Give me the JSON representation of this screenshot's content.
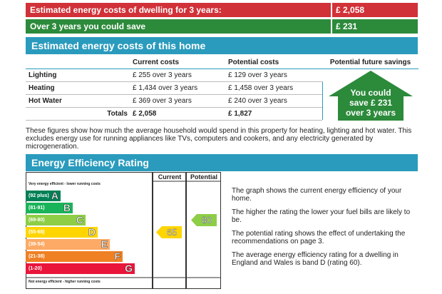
{
  "summary": {
    "estimated_label": "Estimated energy costs of dwelling for 3 years:",
    "estimated_value": "£ 2,058",
    "save_label": "Over 3 years you could save",
    "save_value": "£ 231"
  },
  "costs_section": {
    "title": "Estimated energy costs of this home",
    "headers": [
      "",
      "Current costs",
      "Potential costs",
      "Potential future savings"
    ],
    "rows": [
      {
        "name": "Lighting",
        "current": "£ 255 over 3 years",
        "potential": "£ 129 over 3 years"
      },
      {
        "name": "Heating",
        "current": "£ 1,434 over 3 years",
        "potential": "£ 1,458 over 3 years"
      },
      {
        "name": "Hot Water",
        "current": "£ 369 over 3 years",
        "potential": "£ 240 over 3 years"
      }
    ],
    "totals": {
      "label": "Totals",
      "current": "£ 2,058",
      "potential": "£ 1,827"
    },
    "savings_arrow": {
      "line1": "You could",
      "line2": "save £ 231",
      "line3": "over 3 years",
      "color": "#2c8a3b"
    }
  },
  "note": "These figures show how much the average household would spend in this property for heating, lighting and hot water. This excludes energy use for running appliances like TVs, computers and cookers, and any electricity generated by microgeneration.",
  "eer_section": {
    "title": "Energy Efficiency Rating",
    "col_current": "Current",
    "col_potential": "Potential",
    "top_caption": "Very energy efficient - lower running costs",
    "bottom_caption": "Not energy efficient - higher running costs",
    "bands": [
      {
        "range": "(92 plus)",
        "letter": "A",
        "color": "#008054",
        "fraction": 0.28
      },
      {
        "range": "(81-91)",
        "letter": "B",
        "color": "#19b459",
        "fraction": 0.38
      },
      {
        "range": "(69-80)",
        "letter": "C",
        "color": "#8dce46",
        "fraction": 0.48
      },
      {
        "range": "(55-68)",
        "letter": "D",
        "color": "#ffd500",
        "fraction": 0.58
      },
      {
        "range": "(39-54)",
        "letter": "E",
        "color": "#fcaa65",
        "fraction": 0.68
      },
      {
        "range": "(21-38)",
        "letter": "F",
        "color": "#ef8023",
        "fraction": 0.78
      },
      {
        "range": "(1-20)",
        "letter": "G",
        "color": "#e9153b",
        "fraction": 0.88
      }
    ],
    "current": {
      "value": "65",
      "band": "D",
      "color": "#ffd500"
    },
    "potential": {
      "value": "80",
      "band": "C",
      "color": "#8dce46"
    },
    "paragraphs": [
      "The graph shows the current energy efficiency of your home.",
      "The higher the rating the lower your fuel bills are likely to be.",
      "The potential rating shows the effect of undertaking the recommendations on page 3.",
      "The average energy efficiency rating for a dwelling in England and Wales is band D (rating 60)."
    ]
  }
}
